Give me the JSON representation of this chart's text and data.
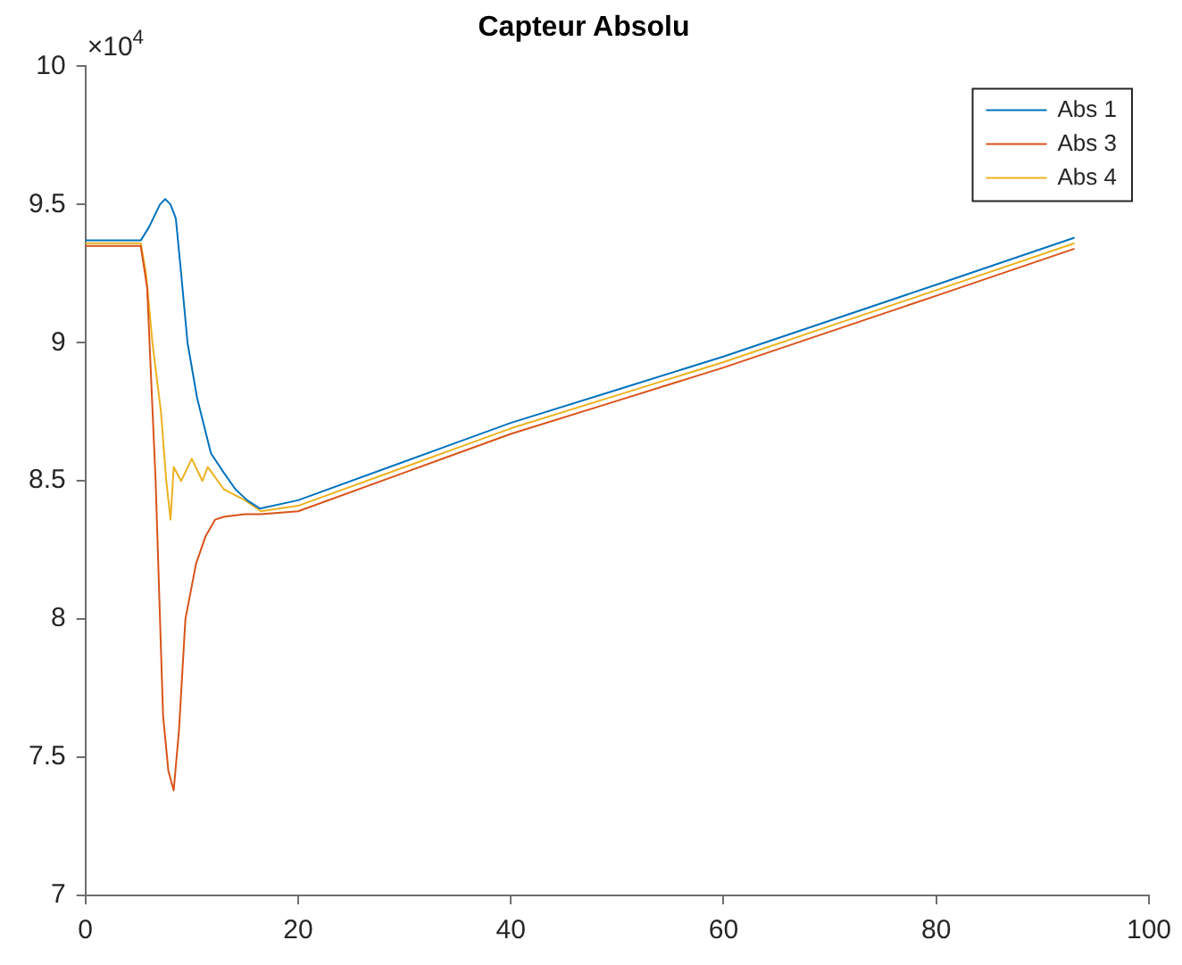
{
  "chart_data": {
    "type": "line",
    "title": "Capteur Absolu",
    "annotations": [
      "×10$^{4}$"
    ],
    "xlim": [
      0,
      100
    ],
    "xticks": [
      0,
      20,
      40,
      60,
      80,
      100
    ],
    "ylim": [
      7,
      10
    ],
    "yticks": [
      7,
      7.5,
      8,
      8.5,
      9,
      9.5,
      10
    ],
    "grid": false,
    "legend": "top right",
    "marker": "none",
    "line_style": "solid",
    "series": [
      {
        "name": "Abs 1",
        "color": "#0072bd",
        "x": [
          0,
          5.2,
          6,
          7,
          7.5,
          8,
          8.5,
          9,
          9.6,
          10.5,
          11.8,
          13,
          14.1,
          15.2,
          16.4,
          20,
          30,
          40,
          50,
          60,
          70,
          80,
          93
        ],
        "values": [
          9.37,
          9.37,
          9.42,
          9.5,
          9.52,
          9.5,
          9.45,
          9.25,
          9.0,
          8.8,
          8.6,
          8.53,
          8.47,
          8.43,
          8.4,
          8.43,
          8.57,
          8.71,
          8.83,
          8.95,
          9.08,
          9.21,
          9.38
        ]
      },
      {
        "name": "Abs 3",
        "color": "#d95319",
        "x": [
          0,
          5.2,
          5.8,
          6.6,
          7.3,
          7.8,
          8.3,
          8.8,
          9.4,
          10.4,
          11.3,
          12.2,
          13,
          15,
          16.5,
          20,
          30,
          40,
          50,
          60,
          70,
          80,
          93
        ],
        "values": [
          9.35,
          9.35,
          9.2,
          8.5,
          7.65,
          7.45,
          7.38,
          7.6,
          8.0,
          8.2,
          8.3,
          8.36,
          8.37,
          8.38,
          8.38,
          8.39,
          8.53,
          8.67,
          8.79,
          8.91,
          9.04,
          9.17,
          9.34
        ]
      },
      {
        "name": "Abs 4",
        "color": "#edb120",
        "x": [
          0,
          5.2,
          5.7,
          6.3,
          7.1,
          7.6,
          8.0,
          8.3,
          9,
          10,
          11,
          11.5,
          13,
          15,
          16.5,
          20,
          30,
          40,
          50,
          60,
          70,
          80,
          93
        ],
        "values": [
          9.36,
          9.36,
          9.25,
          9.0,
          8.75,
          8.5,
          8.36,
          8.55,
          8.5,
          8.58,
          8.5,
          8.55,
          8.47,
          8.43,
          8.39,
          8.41,
          8.55,
          8.69,
          8.81,
          8.93,
          9.06,
          9.19,
          9.36
        ]
      }
    ]
  }
}
